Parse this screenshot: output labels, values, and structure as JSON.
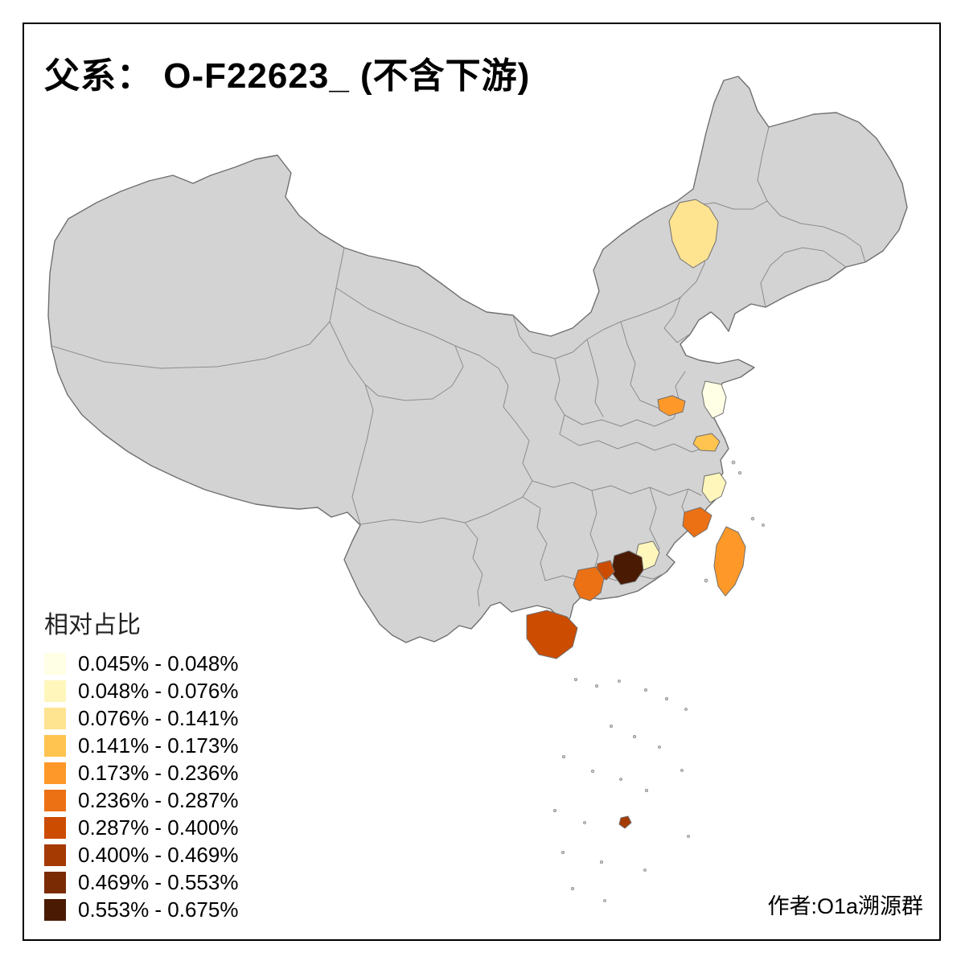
{
  "title": "父系： O-F22623_ (不含下游)",
  "attribution": "作者:O1a溯源群",
  "legend": {
    "title": "相对占比",
    "items": [
      {
        "label": "0.045% - 0.048%",
        "color": "#FFFFE5"
      },
      {
        "label": "0.048% - 0.076%",
        "color": "#FFF6BC"
      },
      {
        "label": "0.076% - 0.141%",
        "color": "#FEE391"
      },
      {
        "label": "0.141% - 0.173%",
        "color": "#FEC44F"
      },
      {
        "label": "0.173% - 0.236%",
        "color": "#FE9929"
      },
      {
        "label": "0.236% - 0.287%",
        "color": "#EC7014"
      },
      {
        "label": "0.287% - 0.400%",
        "color": "#CC4C02"
      },
      {
        "label": "0.400% - 0.469%",
        "color": "#A63A03"
      },
      {
        "label": "0.469% - 0.553%",
        "color": "#7A2B04"
      },
      {
        "label": "0.553% - 0.675%",
        "color": "#4A1A03"
      }
    ]
  },
  "map": {
    "base_color": "#D3D3D3",
    "border_color": "#8C8C8C",
    "regions": [
      {
        "id": "region-northeast",
        "color": "#FEE391",
        "range": "0.076% - 0.141%"
      },
      {
        "id": "region-east-1",
        "color": "#FE9929",
        "range": "0.173% - 0.236%"
      },
      {
        "id": "region-east-2",
        "color": "#FFFFE5",
        "range": "0.045% - 0.048%"
      },
      {
        "id": "region-east-3",
        "color": "#FEC44F",
        "range": "0.141% - 0.173%"
      },
      {
        "id": "region-east-coast",
        "color": "#FFF6BC",
        "range": "0.048% - 0.076%"
      },
      {
        "id": "region-southeast-coast",
        "color": "#EC7014",
        "range": "0.236% - 0.287%"
      },
      {
        "id": "region-taiwan",
        "color": "#FE9929",
        "range": "0.173% - 0.236%"
      },
      {
        "id": "region-south-1",
        "color": "#FFF6BC",
        "range": "0.048% - 0.076%"
      },
      {
        "id": "region-south-2",
        "color": "#4A1A03",
        "range": "0.553% - 0.675%"
      },
      {
        "id": "region-south-3",
        "color": "#CC4C02",
        "range": "0.287% - 0.400%"
      },
      {
        "id": "region-south-4",
        "color": "#EC7014",
        "range": "0.236% - 0.287%"
      },
      {
        "id": "region-hainan",
        "color": "#CC4C02",
        "range": "0.287% - 0.400%"
      },
      {
        "id": "region-south-sea-islet",
        "color": "#A63A03",
        "range": "0.400% - 0.469%"
      }
    ]
  }
}
